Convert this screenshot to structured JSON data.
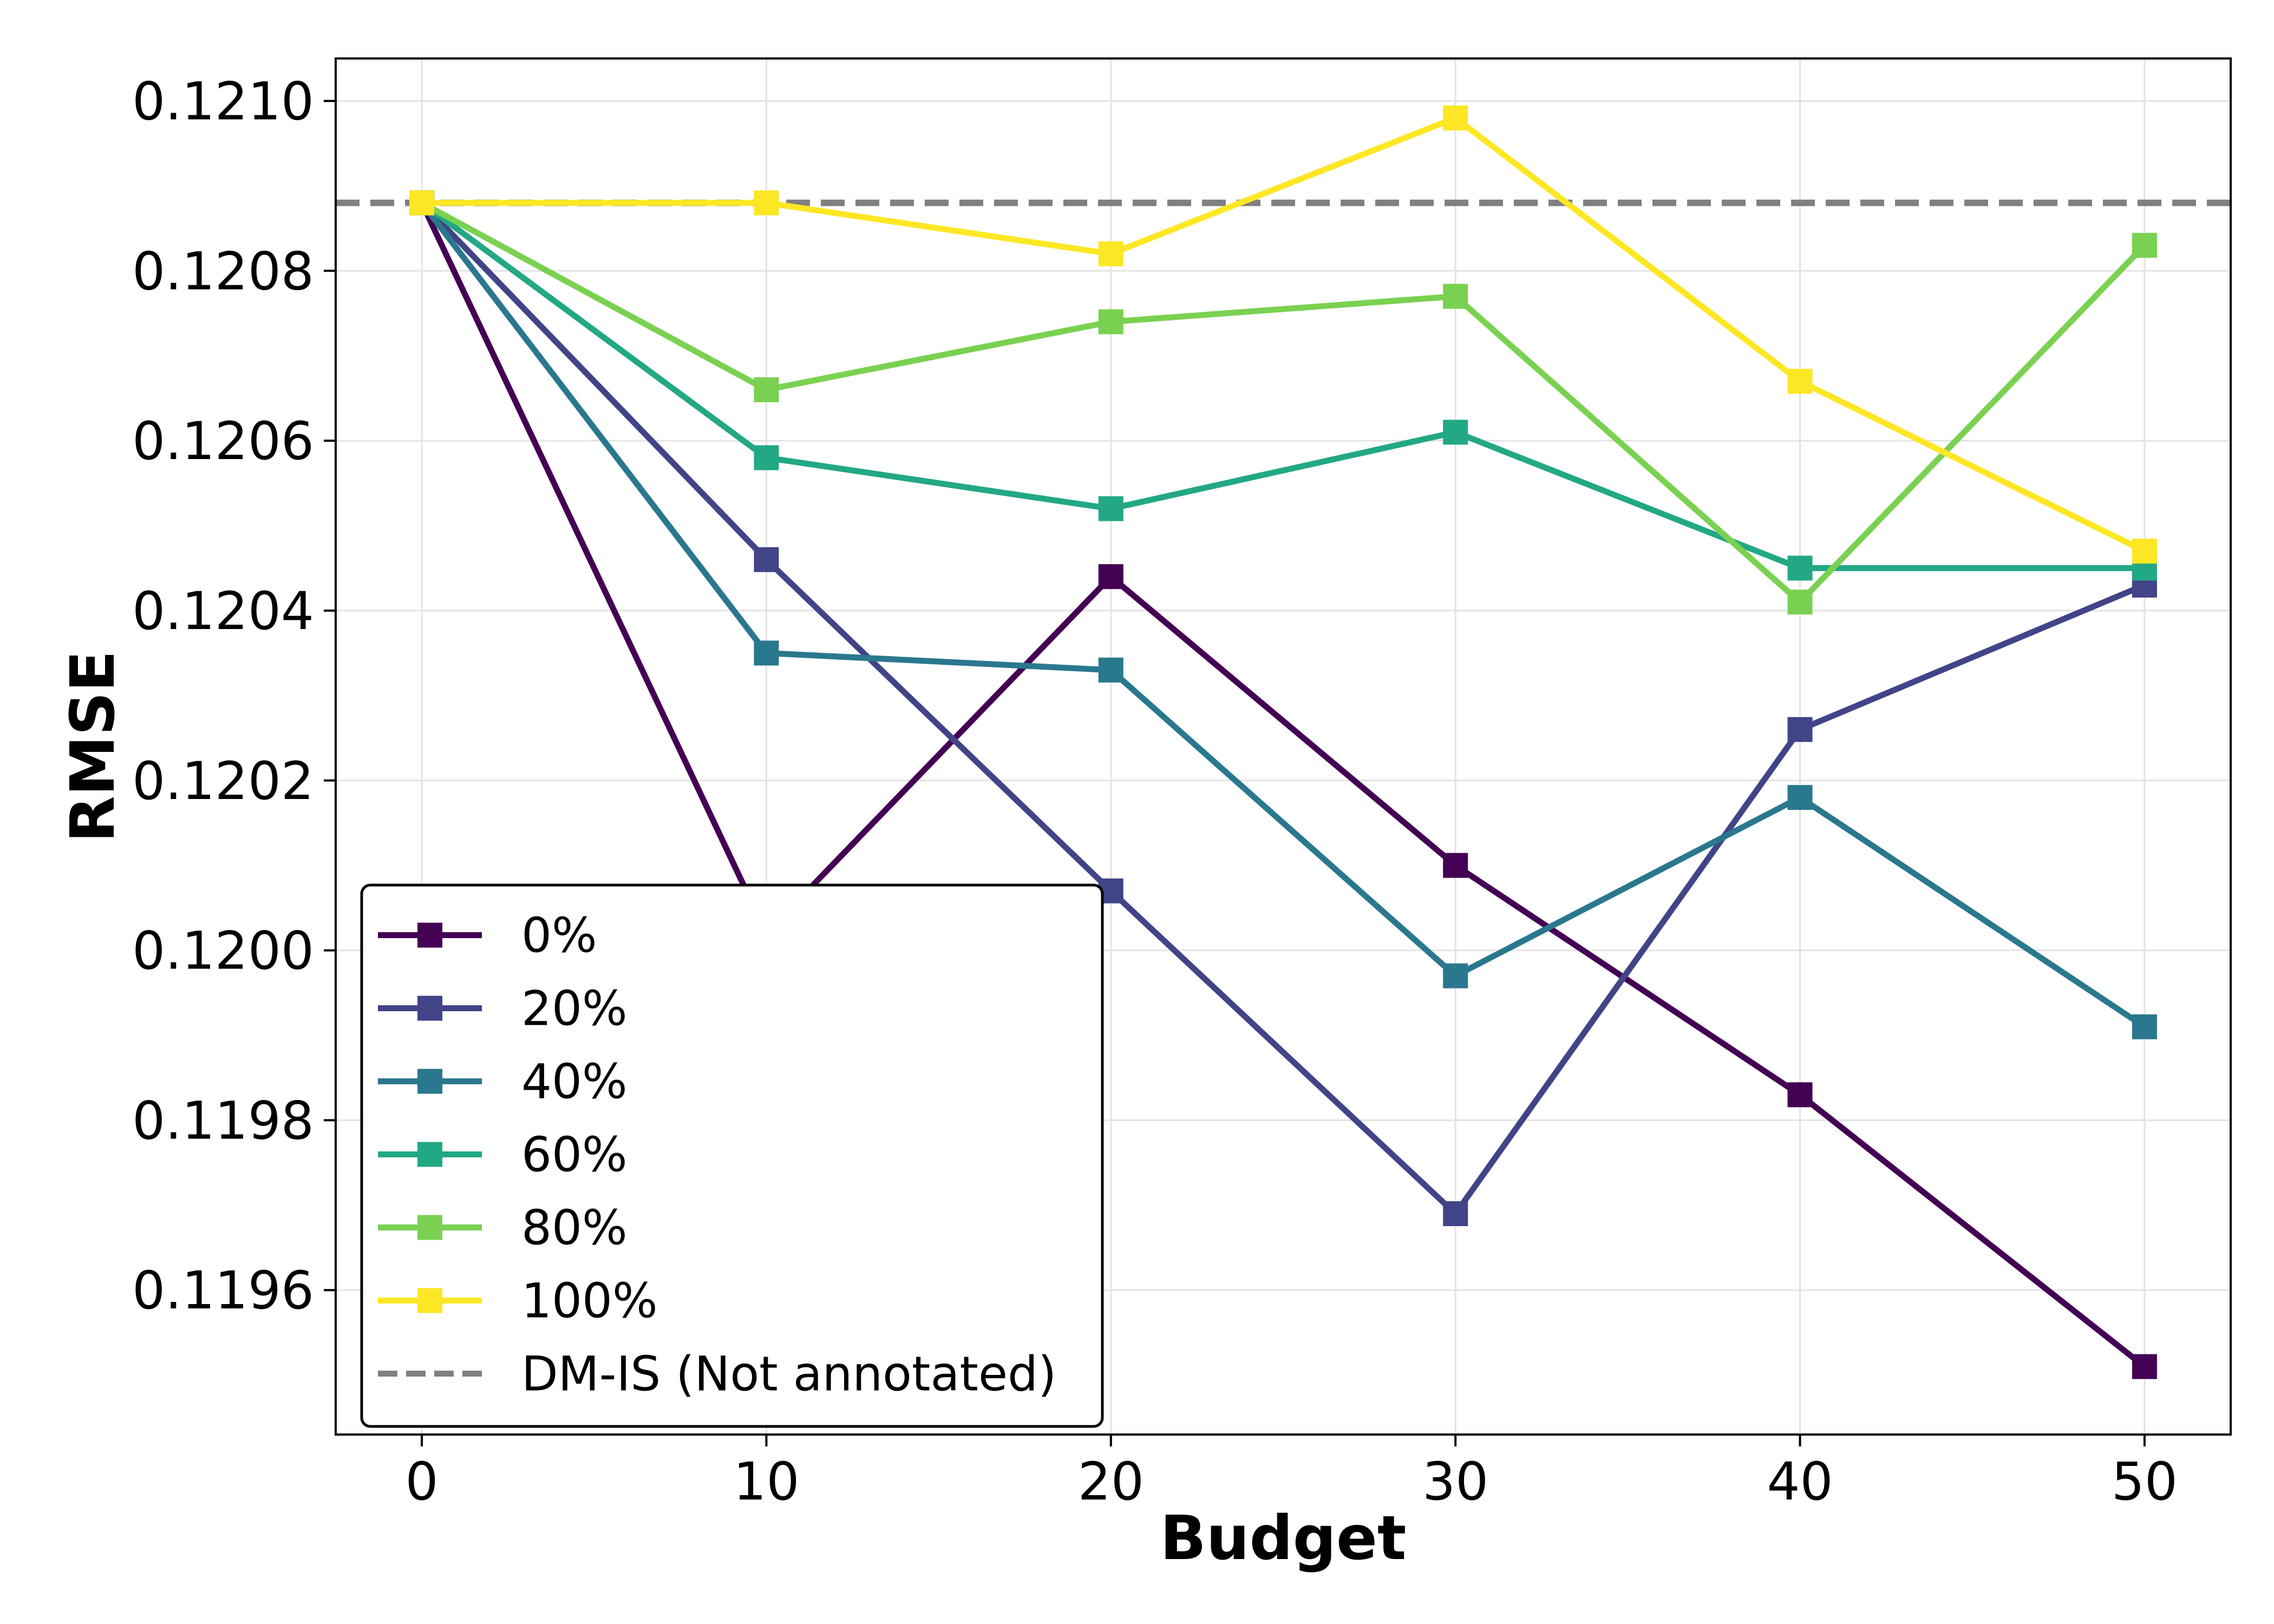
{
  "chart_data": {
    "type": "line",
    "xlabel": "Budget",
    "ylabel": "RMSE",
    "x": [
      0,
      10,
      20,
      30,
      40,
      50
    ],
    "xlim": [
      -2.5,
      52.5
    ],
    "ylim": [
      0.11943,
      0.12105
    ],
    "xticks": [
      0,
      10,
      20,
      30,
      40,
      50
    ],
    "xtick_labels": [
      "0",
      "10",
      "20",
      "30",
      "40",
      "50"
    ],
    "yticks": [
      0.1196,
      0.1198,
      0.12,
      0.1202,
      0.1204,
      0.1206,
      0.1208,
      0.121
    ],
    "ytick_labels": [
      "0.1196",
      "0.1198",
      "0.1200",
      "0.1202",
      "0.1204",
      "0.1206",
      "0.1208",
      "0.1210"
    ],
    "grid": true,
    "legend_position": "lower-left",
    "marker": "square",
    "series": [
      {
        "name": "0%",
        "color": "#440154",
        "values": [
          0.12088,
          0.12002,
          0.12044,
          0.1201,
          0.11983,
          0.11951
        ]
      },
      {
        "name": "20%",
        "color": "#414487",
        "values": [
          0.12088,
          0.12046,
          0.12007,
          0.11969,
          0.12026,
          0.12043
        ]
      },
      {
        "name": "40%",
        "color": "#2a788e",
        "values": [
          0.12088,
          0.12035,
          0.12033,
          0.11997,
          0.12018,
          0.11991
        ]
      },
      {
        "name": "60%",
        "color": "#22a884",
        "values": [
          0.12088,
          0.12058,
          0.12052,
          0.12061,
          0.12045,
          0.12045
        ]
      },
      {
        "name": "80%",
        "color": "#7ad151",
        "values": [
          0.12088,
          0.12066,
          0.12074,
          0.12077,
          0.12041,
          0.12083
        ]
      },
      {
        "name": "100%",
        "color": "#fde725",
        "values": [
          0.12088,
          0.12088,
          0.12082,
          0.12098,
          0.12067,
          0.12047
        ]
      }
    ],
    "reference_line": {
      "name": "DM-IS (Not annotated)",
      "value": 0.12088,
      "color": "#808080",
      "style": "dashed"
    }
  }
}
